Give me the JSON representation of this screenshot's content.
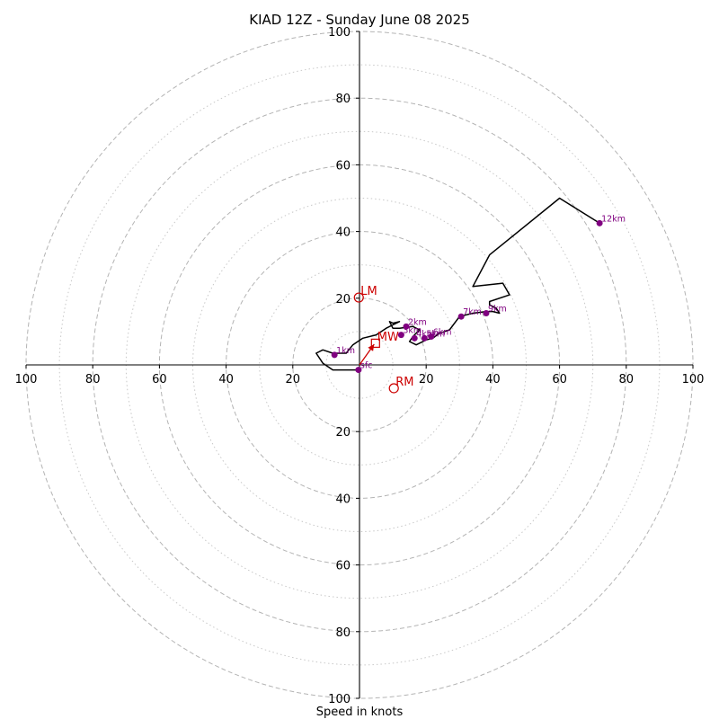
{
  "chart_data": {
    "type": "hodograph",
    "title": "KIAD 12Z - Sunday June 08 2025",
    "xlabel": "Speed in knots",
    "range": [
      -100,
      100
    ],
    "grid": true,
    "ring_major": [
      20,
      40,
      60,
      80,
      100
    ],
    "ring_minor": [
      10,
      30,
      50,
      70,
      90
    ],
    "x_ticks": [
      {
        "value": -100,
        "label": "100"
      },
      {
        "value": -80,
        "label": "80"
      },
      {
        "value": -60,
        "label": "60"
      },
      {
        "value": -40,
        "label": "40"
      },
      {
        "value": -20,
        "label": "20"
      },
      {
        "value": 20,
        "label": "20"
      },
      {
        "value": 40,
        "label": "40"
      },
      {
        "value": 60,
        "label": "60"
      },
      {
        "value": 80,
        "label": "80"
      },
      {
        "value": 100,
        "label": "100"
      }
    ],
    "y_ticks": [
      {
        "value": 100,
        "label": "100"
      },
      {
        "value": 80,
        "label": "80"
      },
      {
        "value": 60,
        "label": "60"
      },
      {
        "value": 40,
        "label": "40"
      },
      {
        "value": 20,
        "label": "20"
      },
      {
        "value": -20,
        "label": "20"
      },
      {
        "value": -40,
        "label": "40"
      },
      {
        "value": -60,
        "label": "60"
      },
      {
        "value": -80,
        "label": "80"
      },
      {
        "value": -100,
        "label": "100"
      }
    ],
    "trace": {
      "color": "#000000",
      "points": [
        [
          -0.3,
          -1.5
        ],
        [
          -8,
          -1.5
        ],
        [
          -11,
          0.5
        ],
        [
          -13,
          3.5
        ],
        [
          -11,
          4.5
        ],
        [
          -8,
          3.5
        ],
        [
          -4,
          3.5
        ],
        [
          -2,
          6
        ],
        [
          1,
          8
        ],
        [
          5,
          9
        ],
        [
          8,
          11
        ],
        [
          10,
          12
        ],
        [
          12,
          13
        ],
        [
          10,
          12.5
        ],
        [
          9,
          13
        ],
        [
          10,
          11
        ],
        [
          12,
          11
        ],
        [
          16,
          11.5
        ],
        [
          18,
          10.5
        ],
        [
          16,
          8.5
        ],
        [
          15,
          7
        ],
        [
          17,
          6
        ],
        [
          20,
          7.5
        ],
        [
          22,
          8
        ],
        [
          24,
          9.5
        ],
        [
          27,
          10.5
        ],
        [
          30,
          14.5
        ],
        [
          34,
          15.5
        ],
        [
          38,
          16
        ],
        [
          40,
          16
        ],
        [
          42,
          15.5
        ],
        [
          41,
          17
        ],
        [
          39,
          18
        ],
        [
          39,
          19
        ],
        [
          45,
          21
        ],
        [
          43,
          24.5
        ],
        [
          34,
          23.5
        ],
        [
          39,
          33
        ],
        [
          60,
          50
        ],
        [
          72,
          42.5
        ]
      ]
    },
    "height_markers": {
      "color": "#800080",
      "points": [
        {
          "u": -0.3,
          "v": -1.5,
          "label": "sfc"
        },
        {
          "u": -7.5,
          "v": 3,
          "label": "1km"
        },
        {
          "u": 14,
          "v": 11.5,
          "label": "2km"
        },
        {
          "u": 12.5,
          "v": 9,
          "label": "3km"
        },
        {
          "u": 16.5,
          "v": 8,
          "label": "4km"
        },
        {
          "u": 19.5,
          "v": 8,
          "label": "5km"
        },
        {
          "u": 21.5,
          "v": 8.5,
          "label": "6km"
        },
        {
          "u": 30.5,
          "v": 14.5,
          "label": "7km"
        },
        {
          "u": 38,
          "v": 15.5,
          "label": "9km"
        },
        {
          "u": 72,
          "v": 42.5,
          "label": "12km"
        }
      ]
    },
    "storm_motion": {
      "color": "#cc0000",
      "markers": [
        {
          "u": -0.2,
          "v": 20.2,
          "label": "LM",
          "shape": "circle"
        },
        {
          "u": 4.8,
          "v": 6.5,
          "label": "MW",
          "shape": "square"
        },
        {
          "u": 10.3,
          "v": -7,
          "label": "RM",
          "shape": "circle"
        }
      ],
      "arrow": {
        "from": [
          0,
          0
        ],
        "to": [
          4.4,
          6.2
        ]
      }
    }
  }
}
